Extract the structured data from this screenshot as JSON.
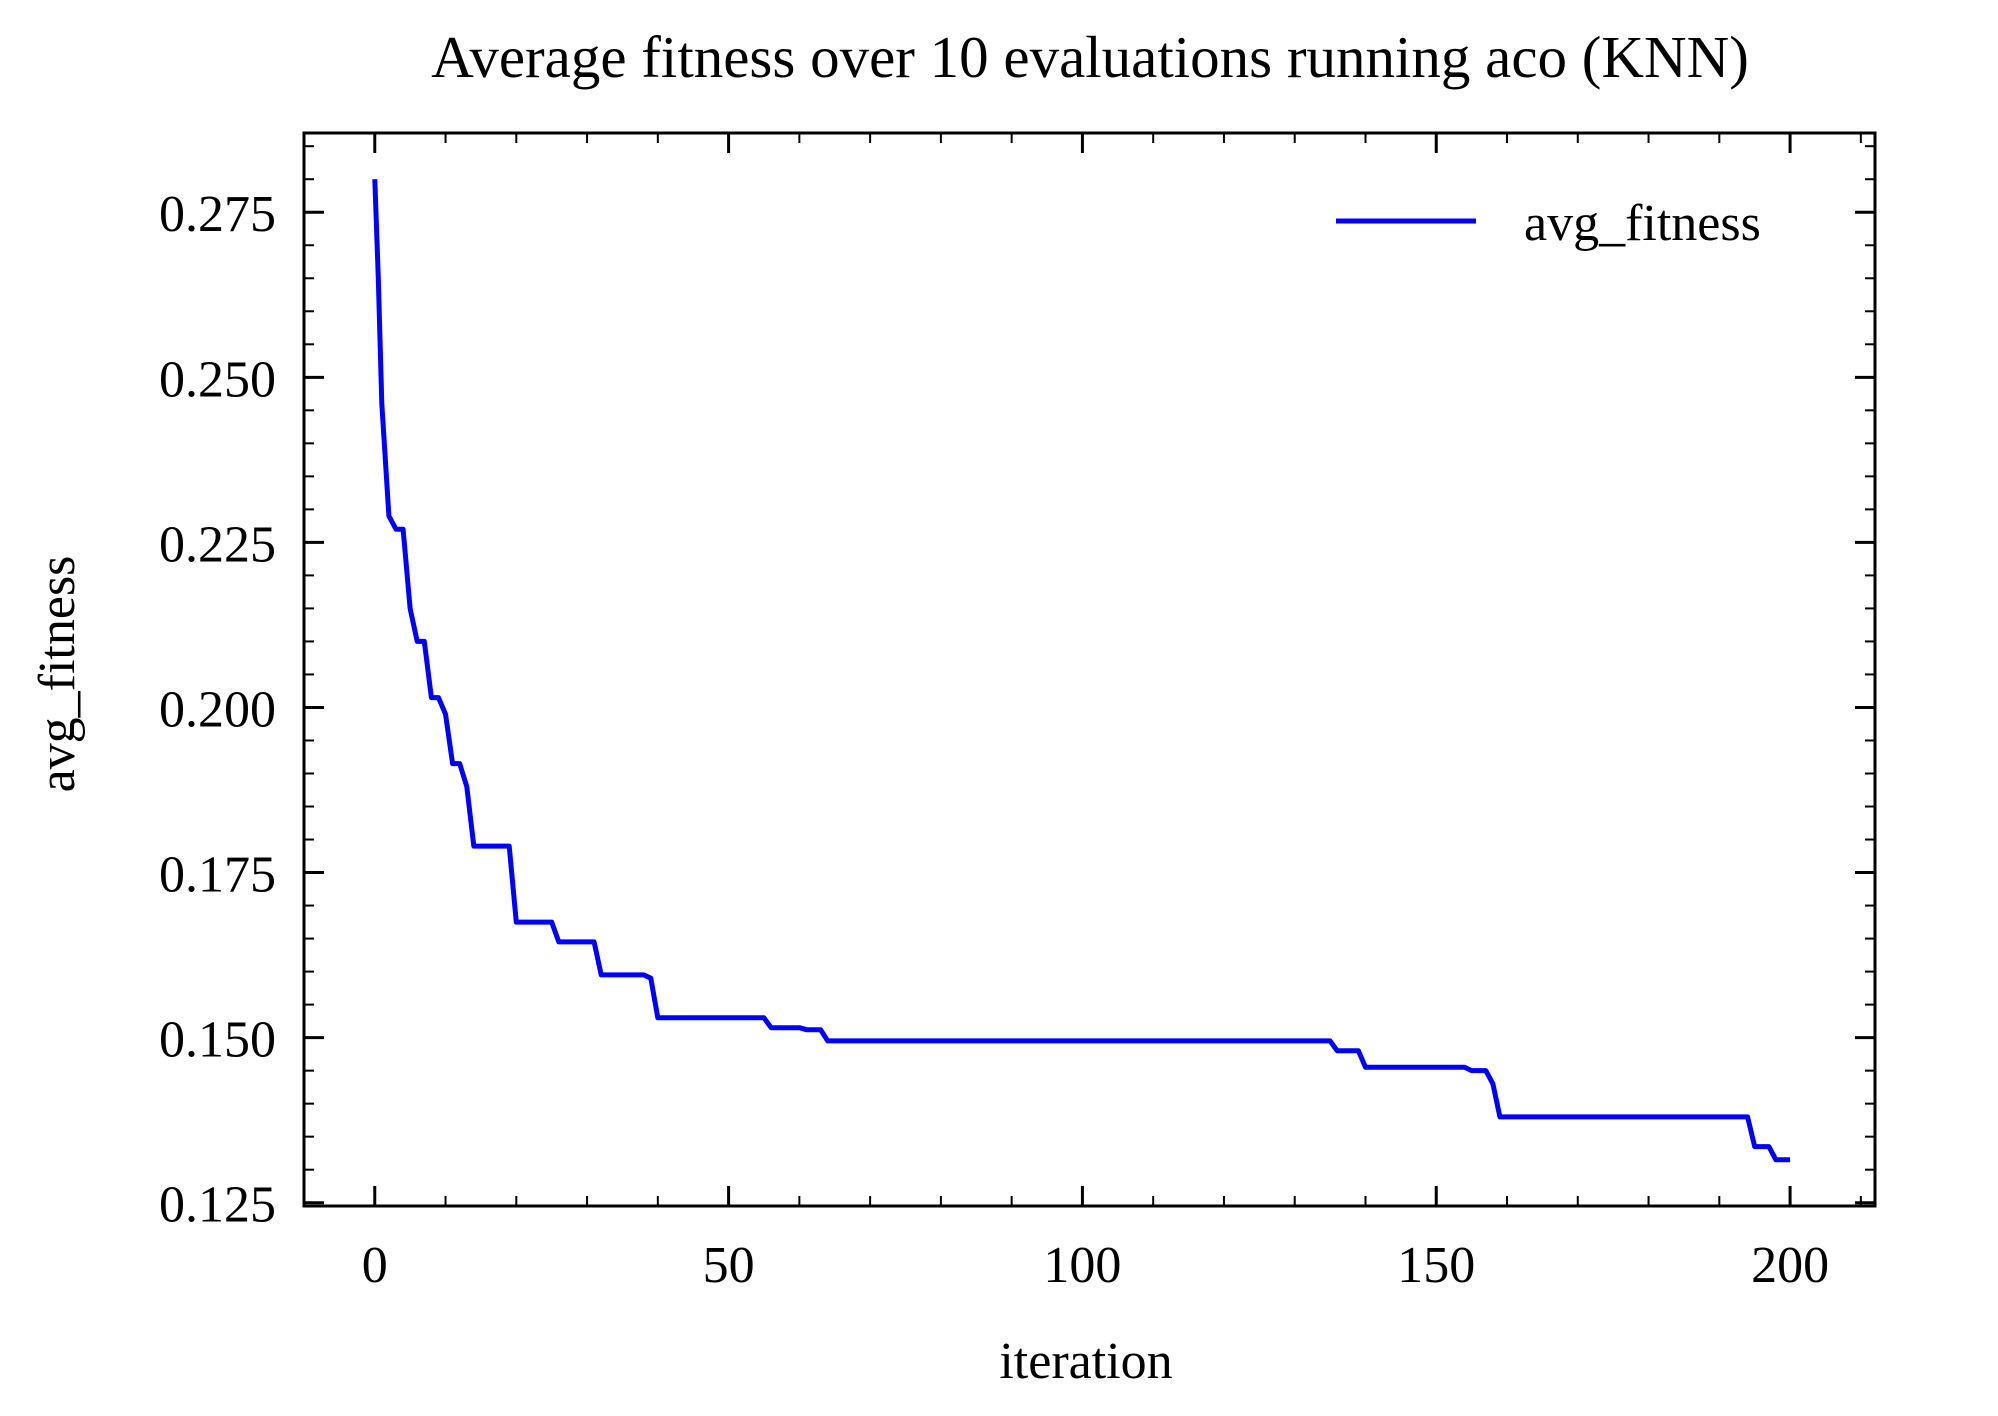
{
  "chart_data": {
    "type": "line",
    "title": "Average fitness over 10 evaluations running aco (KNN)",
    "xlabel": "iteration",
    "ylabel": "avg_fitness",
    "xlim": [
      -10,
      212
    ],
    "ylim": [
      0.1245,
      0.287
    ],
    "x_ticks": [
      0,
      50,
      100,
      150,
      200
    ],
    "x_tick_labels": [
      "0",
      "50",
      "100",
      "150",
      "200"
    ],
    "y_ticks": [
      0.125,
      0.15,
      0.175,
      0.2,
      0.225,
      0.25,
      0.275
    ],
    "y_tick_labels": [
      "0.125",
      "0.150",
      "0.175",
      "0.200",
      "0.225",
      "0.250",
      "0.275"
    ],
    "grid": false,
    "legend": {
      "location": "top-right",
      "entries": [
        "avg_fitness"
      ]
    },
    "series": [
      {
        "name": "avg_fitness",
        "color": "#0000ff",
        "x": [
          0,
          0.5,
          1,
          2,
          3,
          4,
          5,
          6,
          7,
          8,
          9,
          10,
          11,
          12,
          13,
          14,
          15,
          16,
          17,
          18,
          19,
          20,
          21,
          22,
          23,
          24,
          25,
          26,
          27,
          28,
          29,
          30,
          31,
          32,
          33,
          34,
          35,
          36,
          37,
          38,
          39,
          40,
          41,
          50,
          55,
          56,
          60,
          61,
          63,
          64,
          65,
          100,
          135,
          136,
          139,
          140,
          154,
          155,
          157,
          158,
          159,
          160,
          194,
          195,
          197,
          198,
          200
        ],
        "y": [
          0.28,
          0.265,
          0.246,
          0.229,
          0.227,
          0.227,
          0.215,
          0.21,
          0.21,
          0.2015,
          0.2015,
          0.199,
          0.1915,
          0.1915,
          0.188,
          0.179,
          0.179,
          0.179,
          0.179,
          0.179,
          0.179,
          0.1675,
          0.1675,
          0.1675,
          0.1675,
          0.1675,
          0.1675,
          0.1645,
          0.1645,
          0.1645,
          0.1645,
          0.1645,
          0.1645,
          0.1595,
          0.1595,
          0.1595,
          0.1595,
          0.1595,
          0.1595,
          0.1595,
          0.159,
          0.153,
          0.153,
          0.153,
          0.153,
          0.1515,
          0.1515,
          0.1512,
          0.1512,
          0.1495,
          0.1495,
          0.1495,
          0.1495,
          0.148,
          0.148,
          0.1455,
          0.1455,
          0.145,
          0.145,
          0.143,
          0.138,
          0.138,
          0.138,
          0.1335,
          0.1335,
          0.1315,
          0.1315
        ]
      }
    ]
  }
}
